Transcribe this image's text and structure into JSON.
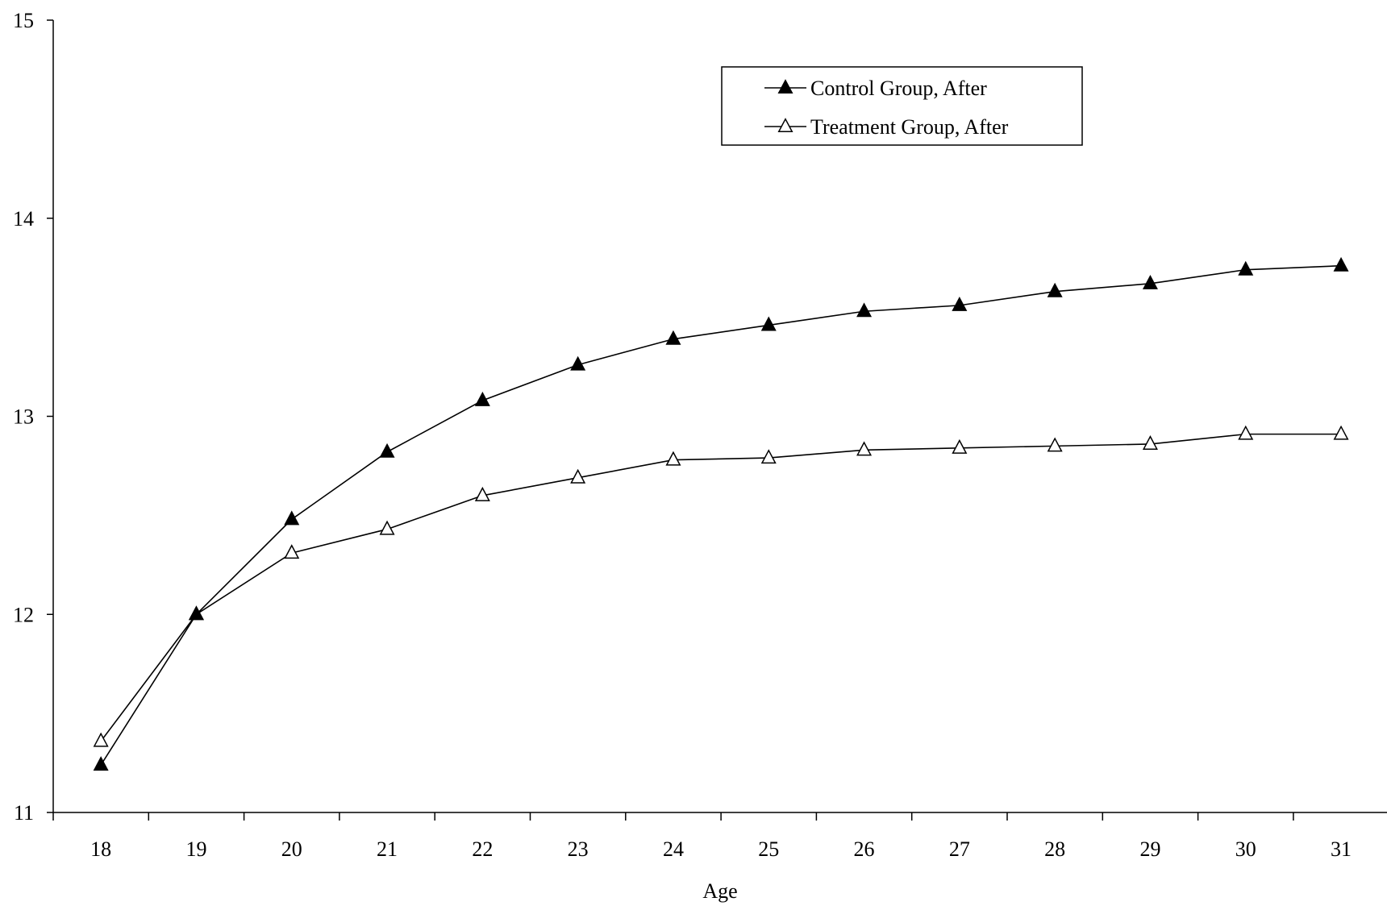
{
  "chart_data": {
    "type": "line",
    "title": "",
    "xlabel": "Age",
    "ylabel": "",
    "categories": [
      "18",
      "19",
      "20",
      "21",
      "22",
      "23",
      "24",
      "25",
      "26",
      "27",
      "28",
      "29",
      "30",
      "31"
    ],
    "x": [
      18,
      19,
      20,
      21,
      22,
      23,
      24,
      25,
      26,
      27,
      28,
      29,
      30,
      31
    ],
    "ylim": [
      11,
      15
    ],
    "yticks": [
      "11",
      "12",
      "13",
      "14",
      "15"
    ],
    "grid": false,
    "legend_position": "top-right",
    "series": [
      {
        "name": "Control Group, After",
        "marker": "filled-triangle",
        "color": "#000000",
        "values": [
          11.24,
          12.0,
          12.48,
          12.82,
          13.08,
          13.26,
          13.39,
          13.46,
          13.53,
          13.56,
          13.63,
          13.67,
          13.74,
          13.76
        ]
      },
      {
        "name": "Treatment Group, After",
        "marker": "hollow-triangle",
        "color": "#000000",
        "values": [
          11.36,
          12.0,
          12.31,
          12.43,
          12.6,
          12.69,
          12.78,
          12.79,
          12.83,
          12.84,
          12.85,
          12.86,
          12.91,
          12.91
        ]
      }
    ]
  }
}
